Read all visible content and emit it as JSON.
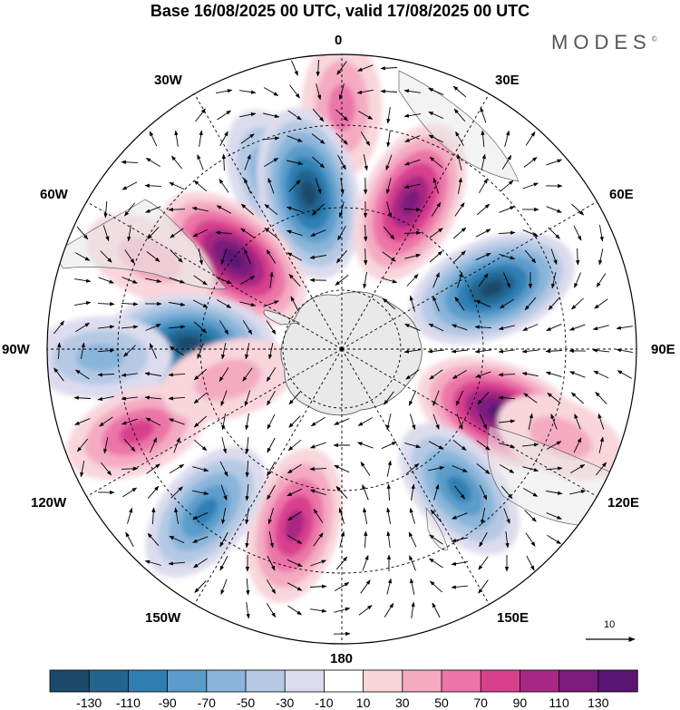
{
  "title": "Base 16/08/2025 00 UTC, valid 17/08/2025 00 UTC",
  "brand": "MODES",
  "brand_mark": "©",
  "longitude_labels": {
    "lon_0": "0",
    "lon_30e": "30E",
    "lon_60e": "60E",
    "lon_90e": "90E",
    "lon_120e": "120E",
    "lon_150e": "150E",
    "lon_180": "180",
    "lon_150w": "150W",
    "lon_120w": "120W",
    "lon_90w": "90W",
    "lon_60w": "60W",
    "lon_30w": "30W"
  },
  "reference_vector": {
    "value": "10"
  },
  "colorbar": {
    "colors": [
      "#1b4a6b",
      "#23648e",
      "#2f7fb3",
      "#5b9ccb",
      "#89b5da",
      "#b5c9e4",
      "#dcdcee",
      "#ffffff",
      "#f8d6dc",
      "#f4abc2",
      "#ec74a8",
      "#d8408e",
      "#a82784",
      "#7b1b7c",
      "#5a1472"
    ],
    "labels": [
      "-130",
      "-110",
      "-90",
      "-70",
      "-50",
      "-30",
      "-10",
      "10",
      "30",
      "50",
      "70",
      "90",
      "110",
      "130"
    ]
  },
  "anomalies": [
    {
      "name": "anomaly-lobe",
      "lon": 0,
      "r": 0.82,
      "value": 55
    },
    {
      "name": "anomaly-lobe",
      "lon": -22,
      "r": 0.62,
      "value": -70
    },
    {
      "name": "anomaly-lobe",
      "lon": -12,
      "r": 0.54,
      "value": -140
    },
    {
      "name": "anomaly-lobe",
      "lon": 25,
      "r": 0.55,
      "value": 125
    },
    {
      "name": "anomaly-lobe",
      "lon": -50,
      "r": 0.48,
      "value": 135
    },
    {
      "name": "anomaly-lobe",
      "lon": -65,
      "r": 0.72,
      "value": 40
    },
    {
      "name": "anomaly-lobe",
      "lon": -88,
      "r": 0.52,
      "value": -140
    },
    {
      "name": "anomaly-lobe",
      "lon": -92,
      "r": 0.82,
      "value": -60
    },
    {
      "name": "anomaly-lobe",
      "lon": 68,
      "r": 0.55,
      "value": -140
    },
    {
      "name": "anomaly-lobe",
      "lon": 112,
      "r": 0.58,
      "value": 140
    },
    {
      "name": "anomaly-lobe",
      "lon": 140,
      "r": 0.62,
      "value": -90
    },
    {
      "name": "anomaly-lobe",
      "lon": -165,
      "r": 0.62,
      "value": 100
    },
    {
      "name": "anomaly-lobe",
      "lon": -140,
      "r": 0.72,
      "value": -90
    },
    {
      "name": "anomaly-lobe",
      "lon": -112,
      "r": 0.75,
      "value": 70
    },
    {
      "name": "anomaly-lobe",
      "lon": -105,
      "r": 0.4,
      "value": 40
    },
    {
      "name": "anomaly-lobe",
      "lon": 112,
      "r": 0.8,
      "value": 30
    }
  ]
}
